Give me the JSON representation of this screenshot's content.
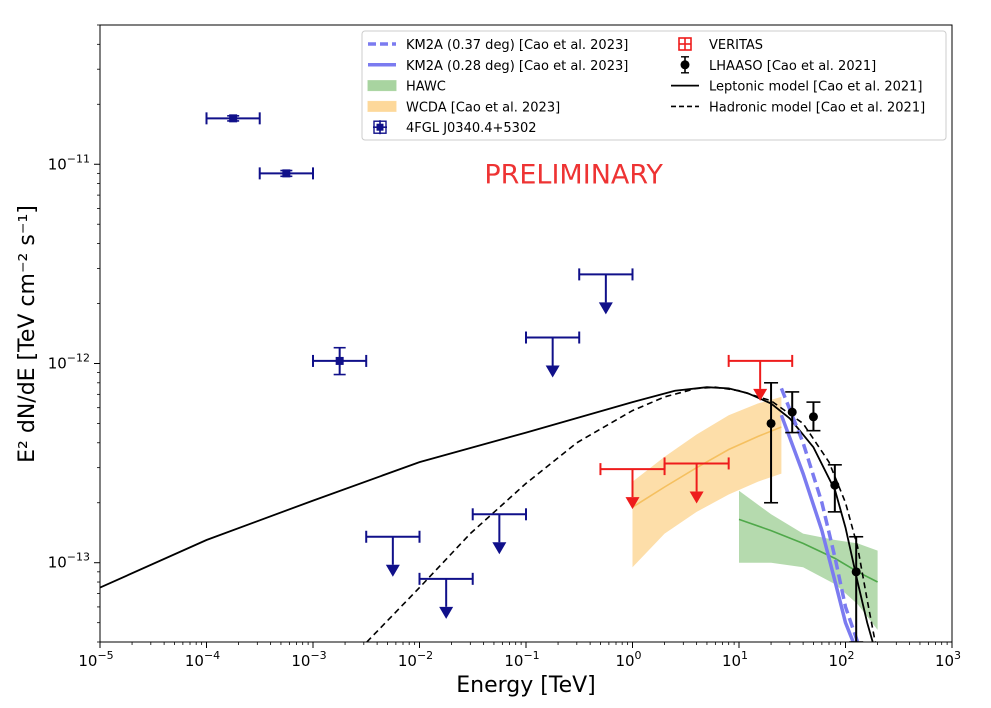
{
  "chart_data": {
    "type": "scatter",
    "xscale": "log",
    "yscale": "log",
    "xlim": [
      1e-05,
      1000
    ],
    "ylim": [
      4e-14,
      5e-11
    ],
    "xlabel": "Energy [TeV]",
    "ylabel": "E² dN/dE [TeV cm⁻² s⁻¹]",
    "x_ticks": [
      {
        "value": 1e-05,
        "base": "10",
        "exp": "−5"
      },
      {
        "value": 0.0001,
        "base": "10",
        "exp": "−4"
      },
      {
        "value": 0.001,
        "base": "10",
        "exp": "−3"
      },
      {
        "value": 0.01,
        "base": "10",
        "exp": "−2"
      },
      {
        "value": 0.1,
        "base": "10",
        "exp": "−1"
      },
      {
        "value": 1,
        "base": "10",
        "exp": "0"
      },
      {
        "value": 10,
        "base": "10",
        "exp": "1"
      },
      {
        "value": 100,
        "base": "10",
        "exp": "2"
      },
      {
        "value": 1000,
        "base": "10",
        "exp": "3"
      }
    ],
    "y_ticks": [
      {
        "value": 1e-13,
        "base": "10",
        "exp": "−13"
      },
      {
        "value": 1e-12,
        "base": "10",
        "exp": "−12"
      },
      {
        "value": 1e-11,
        "base": "10",
        "exp": "−11"
      }
    ],
    "annotation": {
      "text": "PRELIMINARY",
      "color": "#ee3333",
      "x": 0.28,
      "y": 8e-12
    },
    "legend": {
      "placement": "top-right",
      "entries": [
        {
          "label": "KM2A (0.37 deg) [Cao et al. 2023]",
          "kind": "dashed",
          "color": "#7b7bf0"
        },
        {
          "label": "KM2A (0.28 deg) [Cao et al. 2023]",
          "kind": "solid-thick",
          "color": "#7b7bf0"
        },
        {
          "label": "HAWC",
          "kind": "band",
          "color": "#a8d4a0"
        },
        {
          "label": "WCDA [Cao et al. 2023]",
          "kind": "band",
          "color": "#fdd89a"
        },
        {
          "label": "4FGL J0340.4+5302",
          "kind": "marker-square",
          "color": "#10108a"
        },
        {
          "label": "VERITAS",
          "kind": "marker-open-square",
          "color": "#ee1c1c"
        },
        {
          "label": "LHAASO [Cao et al. 2021]",
          "kind": "marker-circle",
          "color": "#000000"
        },
        {
          "label": "Leptonic model [Cao et al. 2021]",
          "kind": "line",
          "color": "#000000"
        },
        {
          "label": "Hadronic model [Cao et al. 2021]",
          "kind": "dashed",
          "color": "#000000"
        }
      ]
    },
    "series": {
      "fermi_points": [
        {
          "x": 0.000178,
          "y": 1.7e-11,
          "xlo": 0.0001,
          "xhi": 0.000316,
          "ylo": 1.65e-11,
          "yhi": 1.75e-11
        },
        {
          "x": 0.000562,
          "y": 9e-12,
          "xlo": 0.000316,
          "xhi": 0.001,
          "ylo": 8.7e-12,
          "yhi": 9.3e-12
        },
        {
          "x": 0.00178,
          "y": 1.03e-12,
          "xlo": 0.001,
          "xhi": 0.00316,
          "ylo": 8.8e-13,
          "yhi": 1.2e-12
        }
      ],
      "fermi_upper_limits": [
        {
          "x": 0.00562,
          "y": 1.35e-13,
          "xlo": 0.00316,
          "xhi": 0.01
        },
        {
          "x": 0.0178,
          "y": 8.3e-14,
          "xlo": 0.01,
          "xhi": 0.0316
        },
        {
          "x": 0.0562,
          "y": 1.75e-13,
          "xlo": 0.0316,
          "xhi": 0.1
        },
        {
          "x": 0.178,
          "y": 1.35e-12,
          "xlo": 0.1,
          "xhi": 0.316
        },
        {
          "x": 0.562,
          "y": 2.8e-12,
          "xlo": 0.316,
          "xhi": 1.0
        }
      ],
      "veritas_upper_limits": [
        {
          "x": 1.0,
          "y": 2.95e-13,
          "xlo": 0.5,
          "xhi": 2.0
        },
        {
          "x": 4.0,
          "y": 3.15e-13,
          "xlo": 2.0,
          "xhi": 8.0
        },
        {
          "x": 15.8,
          "y": 1.03e-12,
          "xlo": 8.0,
          "xhi": 31.6
        }
      ],
      "lhaaso_points": [
        {
          "x": 20.0,
          "y": 5e-13,
          "ylo": 2e-13,
          "yhi": 8e-13
        },
        {
          "x": 31.6,
          "y": 5.7e-13,
          "ylo": 4.5e-13,
          "yhi": 7.2e-13
        },
        {
          "x": 50.0,
          "y": 5.4e-13,
          "ylo": 4.6e-13,
          "yhi": 6.4e-13
        },
        {
          "x": 79.4,
          "y": 2.45e-13,
          "ylo": 1.8e-13,
          "yhi": 3.1e-13
        },
        {
          "x": 126.0,
          "y": 9e-14,
          "ylo": 4e-14,
          "yhi": 1.35e-13
        }
      ],
      "leptonic_model": [
        [
          1e-05,
          7.5e-14
        ],
        [
          0.0001,
          1.3e-13
        ],
        [
          0.001,
          2.05e-13
        ],
        [
          0.01,
          3.2e-13
        ],
        [
          0.1,
          4.5e-13
        ],
        [
          1,
          6.4e-13
        ],
        [
          2.5,
          7.3e-13
        ],
        [
          5,
          7.6e-13
        ],
        [
          8,
          7.5e-13
        ],
        [
          12,
          7.1e-13
        ],
        [
          20,
          6.3e-13
        ],
        [
          30,
          5.3e-13
        ],
        [
          50,
          3.8e-13
        ],
        [
          80,
          2.3e-13
        ],
        [
          100,
          1.5e-13
        ],
        [
          130,
          8e-14
        ],
        [
          160,
          5e-14
        ],
        [
          180,
          4e-14
        ]
      ],
      "hadronic_model": [
        [
          0.0032,
          4e-14
        ],
        [
          0.01,
          7.5e-14
        ],
        [
          0.03,
          1.4e-13
        ],
        [
          0.1,
          2.5e-13
        ],
        [
          0.3,
          4e-13
        ],
        [
          1,
          5.8e-13
        ],
        [
          2,
          6.8e-13
        ],
        [
          4,
          7.5e-13
        ],
        [
          6,
          7.6e-13
        ],
        [
          10,
          7.3e-13
        ],
        [
          20,
          6.5e-13
        ],
        [
          40,
          5e-13
        ],
        [
          70,
          3.2e-13
        ],
        [
          100,
          2e-13
        ],
        [
          130,
          1.2e-13
        ],
        [
          160,
          6.5e-14
        ],
        [
          190,
          4e-14
        ]
      ],
      "km2a_037": [
        [
          25,
          7.5e-13
        ],
        [
          40,
          4e-13
        ],
        [
          60,
          2e-13
        ],
        [
          80,
          1.05e-13
        ],
        [
          100,
          6e-14
        ],
        [
          130,
          4e-14
        ]
      ],
      "km2a_028": [
        [
          25,
          5.5e-13
        ],
        [
          40,
          2.8e-13
        ],
        [
          60,
          1.45e-13
        ],
        [
          80,
          8e-14
        ],
        [
          100,
          5e-14
        ],
        [
          118,
          4e-14
        ]
      ],
      "wcda_band": {
        "upper": [
          [
            1,
            2.55e-13
          ],
          [
            2,
            3.4e-13
          ],
          [
            4,
            4.4e-13
          ],
          [
            8,
            5.5e-13
          ],
          [
            15,
            6.3e-13
          ],
          [
            25,
            6.8e-13
          ]
        ],
        "center": [
          [
            1,
            1.9e-13
          ],
          [
            2,
            2.4e-13
          ],
          [
            4,
            3e-13
          ],
          [
            8,
            3.7e-13
          ],
          [
            15,
            4.3e-13
          ],
          [
            25,
            4.8e-13
          ]
        ],
        "lower": [
          [
            1,
            9.5e-14
          ],
          [
            2,
            1.4e-13
          ],
          [
            4,
            1.8e-13
          ],
          [
            8,
            2.2e-13
          ],
          [
            15,
            2.55e-13
          ],
          [
            25,
            2.8e-13
          ]
        ]
      },
      "hawc_band": {
        "upper": [
          [
            10,
            2.3e-13
          ],
          [
            20,
            1.75e-13
          ],
          [
            40,
            1.4e-13
          ],
          [
            80,
            1.3e-13
          ],
          [
            130,
            1.25e-13
          ],
          [
            200,
            1.15e-13
          ]
        ],
        "center": [
          [
            10,
            1.65e-13
          ],
          [
            20,
            1.45e-13
          ],
          [
            40,
            1.25e-13
          ],
          [
            80,
            1.05e-13
          ],
          [
            130,
            9e-14
          ],
          [
            200,
            8e-14
          ]
        ],
        "lower": [
          [
            10,
            1e-13
          ],
          [
            20,
            1e-13
          ],
          [
            40,
            9.5e-14
          ],
          [
            80,
            7.8e-14
          ],
          [
            130,
            6.2e-14
          ],
          [
            200,
            4.6e-14
          ]
        ]
      }
    }
  }
}
